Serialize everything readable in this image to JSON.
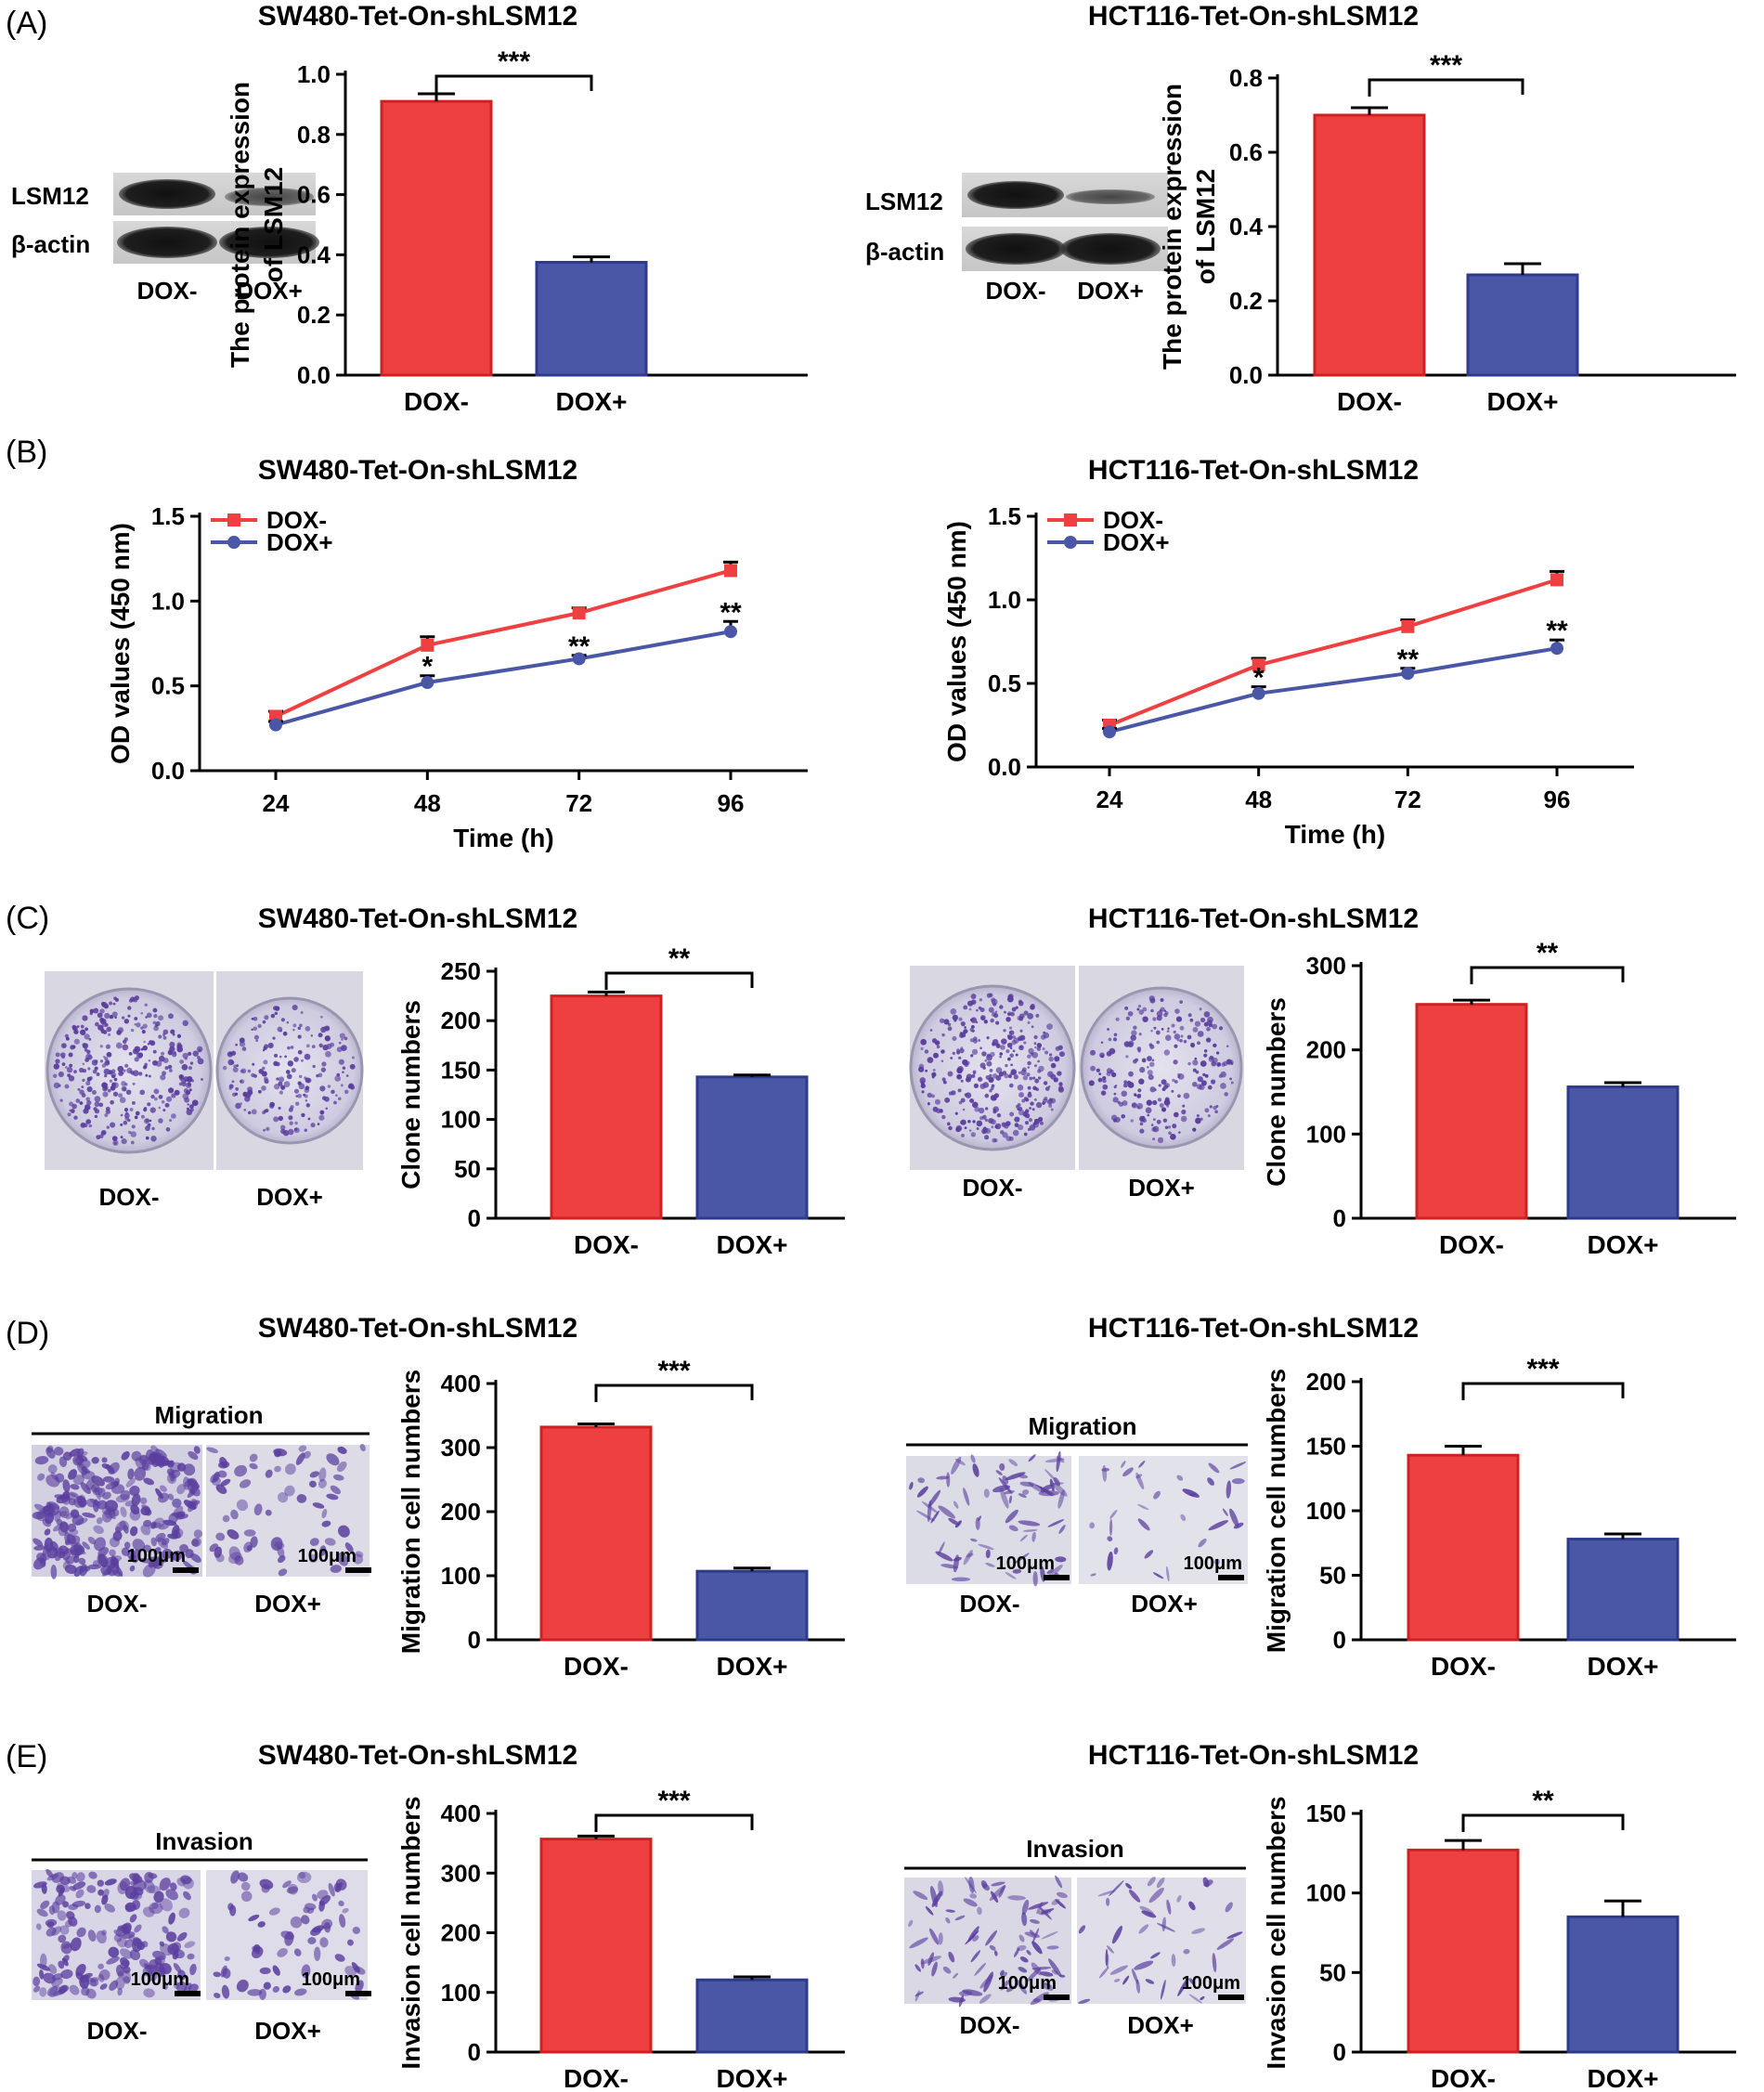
{
  "figure": {
    "panel_labels": [
      "(A)",
      "(B)",
      "(C)",
      "(D)",
      "(E)"
    ],
    "colors": {
      "dox_minus": "#ee4040",
      "dox_minus_edge": "#cc2222",
      "dox_plus": "#4a56a6",
      "dox_plus_edge": "#2f3a8a",
      "stain": "#5a3e9e"
    },
    "images": {
      "dox_minus_label": "DOX-",
      "dox_plus_label": "DOX+",
      "migration_label": "Migration",
      "invasion_label": "Invasion",
      "scale_bar_label": "100μm",
      "blot_labels": [
        "LSM12",
        "β-actin"
      ]
    }
  },
  "chart_data": [
    {
      "id": "A-left",
      "type": "bar",
      "title": "SW480-Tet-On-shLSM12",
      "categories": [
        "DOX-",
        "DOX+"
      ],
      "values": [
        0.91,
        0.375
      ],
      "errors": [
        0.025,
        0.018
      ],
      "ylabel": [
        "The protein expression",
        "of LSM12"
      ],
      "xlabel": "",
      "ylim": [
        0,
        1.0
      ],
      "yticks": [
        0.0,
        0.2,
        0.4,
        0.6,
        0.8,
        1.0
      ],
      "tick_decimals": 1,
      "significance": "***"
    },
    {
      "id": "A-right",
      "type": "bar",
      "title": "HCT116-Tet-On-shLSM12",
      "categories": [
        "DOX-",
        "DOX+"
      ],
      "values": [
        0.7,
        0.27
      ],
      "errors": [
        0.02,
        0.03
      ],
      "ylabel": [
        "The protein expression",
        "of LSM12"
      ],
      "xlabel": "",
      "ylim": [
        0,
        0.8
      ],
      "yticks": [
        0.0,
        0.2,
        0.4,
        0.6,
        0.8
      ],
      "tick_decimals": 1,
      "significance": "***"
    },
    {
      "id": "B-left",
      "type": "line",
      "title": "SW480-Tet-On-shLSM12",
      "x": [
        24,
        48,
        72,
        96
      ],
      "series": [
        {
          "name": "DOX-",
          "values": [
            0.32,
            0.74,
            0.93,
            1.18
          ],
          "errors": [
            0.03,
            0.05,
            0.03,
            0.05
          ]
        },
        {
          "name": "DOX+",
          "values": [
            0.27,
            0.52,
            0.66,
            0.82
          ],
          "errors": [
            0.02,
            0.04,
            0.02,
            0.06
          ]
        }
      ],
      "annotations": [
        "",
        "*",
        "**",
        "**"
      ],
      "xlabel": "Time (h)",
      "ylabel": "OD values (450 nm)",
      "ylim": [
        0,
        1.5
      ],
      "yticks": [
        0.0,
        0.5,
        1.0,
        1.5
      ],
      "tick_decimals": 1
    },
    {
      "id": "B-right",
      "type": "line",
      "title": "HCT116-Tet-On-shLSM12",
      "x": [
        24,
        48,
        72,
        96
      ],
      "series": [
        {
          "name": "DOX-",
          "values": [
            0.25,
            0.61,
            0.84,
            1.12
          ],
          "errors": [
            0.03,
            0.04,
            0.04,
            0.05
          ]
        },
        {
          "name": "DOX+",
          "values": [
            0.21,
            0.44,
            0.56,
            0.71
          ],
          "errors": [
            0.02,
            0.04,
            0.03,
            0.05
          ]
        }
      ],
      "annotations": [
        "",
        "*",
        "**",
        "**"
      ],
      "xlabel": "Time (h)",
      "ylabel": "OD values (450 nm)",
      "ylim": [
        0,
        1.5
      ],
      "yticks": [
        0.0,
        0.5,
        1.0,
        1.5
      ],
      "tick_decimals": 1
    },
    {
      "id": "C-left",
      "type": "bar",
      "title": "SW480-Tet-On-shLSM12",
      "categories": [
        "DOX-",
        "DOX+"
      ],
      "values": [
        225,
        143
      ],
      "errors": [
        4,
        2
      ],
      "ylabel": [
        "Clone numbers"
      ],
      "xlabel": "",
      "ylim": [
        0,
        250
      ],
      "yticks": [
        0,
        50,
        100,
        150,
        200,
        250
      ],
      "tick_decimals": 0,
      "significance": "**"
    },
    {
      "id": "C-right",
      "type": "bar",
      "title": "HCT116-Tet-On-shLSM12",
      "categories": [
        "DOX-",
        "DOX+"
      ],
      "values": [
        254,
        156
      ],
      "errors": [
        5,
        5
      ],
      "ylabel": [
        "Clone numbers"
      ],
      "xlabel": "",
      "ylim": [
        0,
        300
      ],
      "yticks": [
        0,
        100,
        200,
        300
      ],
      "tick_decimals": 0,
      "significance": "**"
    },
    {
      "id": "D-left",
      "type": "bar",
      "title": "SW480-Tet-On-shLSM12",
      "categories": [
        "DOX-",
        "DOX+"
      ],
      "values": [
        332,
        107
      ],
      "errors": [
        5,
        5
      ],
      "ylabel": [
        "Migration cell numbers"
      ],
      "xlabel": "",
      "ylim": [
        0,
        400
      ],
      "yticks": [
        0,
        100,
        200,
        300,
        400
      ],
      "tick_decimals": 0,
      "significance": "***"
    },
    {
      "id": "D-right",
      "type": "bar",
      "title": "HCT116-Tet-On-shLSM12",
      "categories": [
        "DOX-",
        "DOX+"
      ],
      "values": [
        143,
        78
      ],
      "errors": [
        7,
        4
      ],
      "ylabel": [
        "Migration cell numbers"
      ],
      "xlabel": "",
      "ylim": [
        0,
        200
      ],
      "yticks": [
        0,
        50,
        100,
        150,
        200
      ],
      "tick_decimals": 0,
      "significance": "***"
    },
    {
      "id": "E-left",
      "type": "bar",
      "title": "SW480-Tet-On-shLSM12",
      "categories": [
        "DOX-",
        "DOX+"
      ],
      "values": [
        357,
        121
      ],
      "errors": [
        5,
        5
      ],
      "ylabel": [
        "Invasion cell numbers"
      ],
      "xlabel": "",
      "ylim": [
        0,
        400
      ],
      "yticks": [
        0,
        100,
        200,
        300,
        400
      ],
      "tick_decimals": 0,
      "significance": "***"
    },
    {
      "id": "E-right",
      "type": "bar",
      "title": "HCT116-Tet-On-shLSM12",
      "categories": [
        "DOX-",
        "DOX+"
      ],
      "values": [
        127,
        85
      ],
      "errors": [
        6,
        10
      ],
      "ylabel": [
        "Invasion cell numbers"
      ],
      "xlabel": "",
      "ylim": [
        0,
        150
      ],
      "yticks": [
        0,
        50,
        100,
        150
      ],
      "tick_decimals": 0,
      "significance": "**"
    }
  ]
}
